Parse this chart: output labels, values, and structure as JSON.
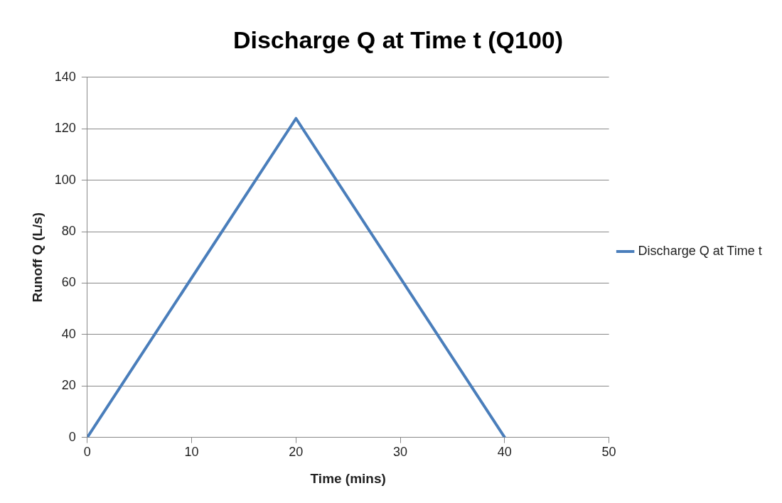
{
  "chart_data": {
    "type": "line",
    "title": "Discharge Q at Time t (Q100)",
    "xlabel": "Time (mins)",
    "ylabel": "Runoff Q (L/s)",
    "x": [
      0,
      20,
      40
    ],
    "series": [
      {
        "name": "Discharge Q at Time t",
        "color": "#4a7ebb",
        "values": [
          0,
          124,
          0
        ]
      }
    ],
    "xlim": [
      0,
      50
    ],
    "xticks": [
      0,
      10,
      20,
      30,
      40,
      50
    ],
    "ylim": [
      0,
      140
    ],
    "yticks": [
      0,
      20,
      40,
      60,
      80,
      100,
      120,
      140
    ],
    "grid": "y",
    "legend": "right",
    "marker": "none",
    "line_style": "solid"
  }
}
